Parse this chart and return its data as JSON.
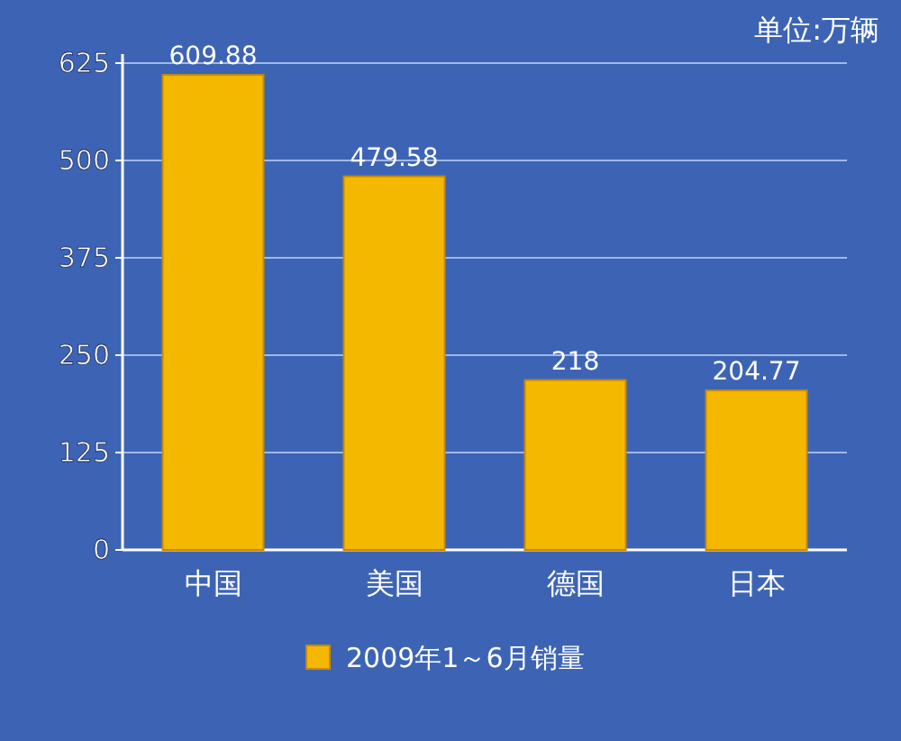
{
  "chart_data": {
    "type": "bar",
    "categories": [
      "中国",
      "美国",
      "德国",
      "日本"
    ],
    "series": [
      {
        "name": "2009年1～6月销量",
        "color": "#f5b800",
        "values": [
          609.88,
          479.58,
          218,
          204.77
        ]
      }
    ],
    "ylim": [
      0,
      625
    ],
    "yticks": [
      0,
      125,
      250,
      375,
      500,
      625
    ],
    "grid": "y",
    "legend": "bottom",
    "data_labels": true,
    "annotations": [
      "单位:万辆"
    ]
  }
}
